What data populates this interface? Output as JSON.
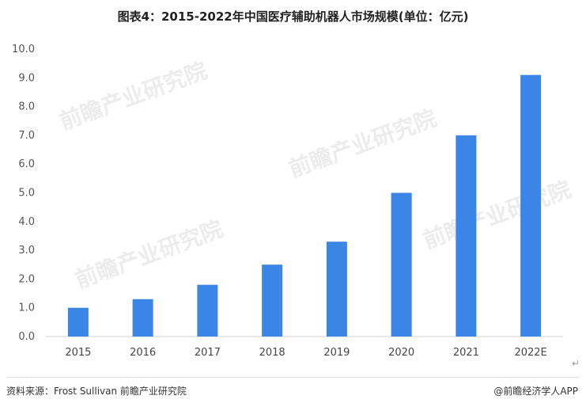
{
  "chart_data": {
    "type": "bar",
    "title": "图表4：2015-2022年中国医疗辅助机器人市场规模(单位：亿元)",
    "categories": [
      "2015",
      "2016",
      "2017",
      "2018",
      "2019",
      "2020",
      "2021",
      "2022E"
    ],
    "values": [
      1.0,
      1.3,
      1.8,
      2.5,
      3.3,
      5.0,
      7.0,
      9.1
    ],
    "ylim": [
      0,
      10
    ],
    "yticks": [
      "0.0",
      "1.0",
      "2.0",
      "3.0",
      "4.0",
      "5.0",
      "6.0",
      "7.0",
      "8.0",
      "9.0",
      "10.0"
    ],
    "xlabel": "",
    "ylabel": "",
    "grid": false,
    "bar_color": "#3a85e6"
  },
  "watermark": "前瞻产业研究院",
  "footer": {
    "source": "资料来源：Frost Sullivan 前瞻产业研究院",
    "brand": "@前瞻经济学人APP"
  }
}
